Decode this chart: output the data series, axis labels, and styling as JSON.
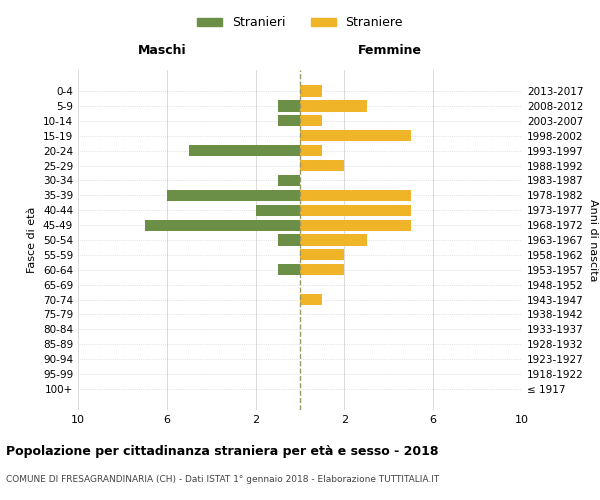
{
  "age_groups": [
    "100+",
    "95-99",
    "90-94",
    "85-89",
    "80-84",
    "75-79",
    "70-74",
    "65-69",
    "60-64",
    "55-59",
    "50-54",
    "45-49",
    "40-44",
    "35-39",
    "30-34",
    "25-29",
    "20-24",
    "15-19",
    "10-14",
    "5-9",
    "0-4"
  ],
  "birth_years": [
    "≤ 1917",
    "1918-1922",
    "1923-1927",
    "1928-1932",
    "1933-1937",
    "1938-1942",
    "1943-1947",
    "1948-1952",
    "1953-1957",
    "1958-1962",
    "1963-1967",
    "1968-1972",
    "1973-1977",
    "1978-1982",
    "1983-1987",
    "1988-1992",
    "1993-1997",
    "1998-2002",
    "2003-2007",
    "2008-2012",
    "2013-2017"
  ],
  "maschi": [
    0,
    0,
    0,
    0,
    0,
    0,
    0,
    0,
    1,
    0,
    1,
    7,
    2,
    6,
    1,
    0,
    5,
    0,
    1,
    1,
    0
  ],
  "femmine": [
    0,
    0,
    0,
    0,
    0,
    0,
    1,
    0,
    2,
    2,
    3,
    5,
    5,
    5,
    0,
    2,
    1,
    5,
    1,
    3,
    1
  ],
  "color_maschi": "#6b8f47",
  "color_femmine": "#f0b429",
  "background_color": "#ffffff",
  "grid_color": "#cccccc",
  "center_line_color": "#999966",
  "title": "Popolazione per cittadinanza straniera per età e sesso - 2018",
  "subtitle": "COMUNE DI FRESAGRANDINARIA (CH) - Dati ISTAT 1° gennaio 2018 - Elaborazione TUTTITALIA.IT",
  "xlabel_maschi": "Maschi",
  "xlabel_femmine": "Femmine",
  "ylabel_left": "Fasce di età",
  "ylabel_right": "Anni di nascita",
  "legend_maschi": "Stranieri",
  "legend_femmine": "Straniere",
  "xlim": 10
}
